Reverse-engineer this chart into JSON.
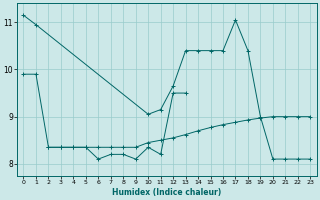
{
  "xlabel": "Humidex (Indice chaleur)",
  "bg_color": "#cce8e8",
  "grid_color": "#99cccc",
  "line_color": "#006666",
  "xlim": [
    -0.5,
    23.5
  ],
  "ylim": [
    7.75,
    11.4
  ],
  "yticks": [
    8,
    9,
    10,
    11
  ],
  "xticks": [
    0,
    1,
    2,
    3,
    4,
    5,
    6,
    7,
    8,
    9,
    10,
    11,
    12,
    13,
    14,
    15,
    16,
    17,
    18,
    19,
    20,
    21,
    22,
    23
  ],
  "series": [
    {
      "x": [
        0,
        1,
        2,
        3,
        4,
        5,
        6,
        7,
        8,
        9,
        10,
        11,
        12,
        13
      ],
      "y": [
        9.9,
        9.9,
        8.35,
        8.35,
        8.35,
        8.35,
        8.1,
        8.2,
        8.2,
        8.1,
        8.35,
        8.2,
        9.5,
        9.5
      ]
    },
    {
      "x": [
        2,
        3,
        4,
        5,
        6,
        7,
        8,
        9,
        10,
        11,
        12,
        13,
        14,
        15,
        16,
        17,
        18,
        19,
        20,
        21,
        22,
        23
      ],
      "y": [
        8.35,
        8.35,
        8.35,
        8.35,
        8.35,
        8.35,
        8.35,
        8.35,
        8.45,
        8.5,
        8.55,
        8.62,
        8.7,
        8.77,
        8.83,
        8.88,
        8.93,
        8.97,
        9.0,
        9.0,
        9.0,
        9.0
      ]
    },
    {
      "x": [
        0,
        1,
        10,
        11,
        12,
        13,
        14,
        15,
        16,
        17,
        18,
        19,
        20,
        21,
        22,
        23
      ],
      "y": [
        11.15,
        10.95,
        9.05,
        9.15,
        9.65,
        10.4,
        10.4,
        10.4,
        10.4,
        11.05,
        10.4,
        9.0,
        8.1,
        8.1,
        8.1,
        8.1
      ]
    }
  ]
}
